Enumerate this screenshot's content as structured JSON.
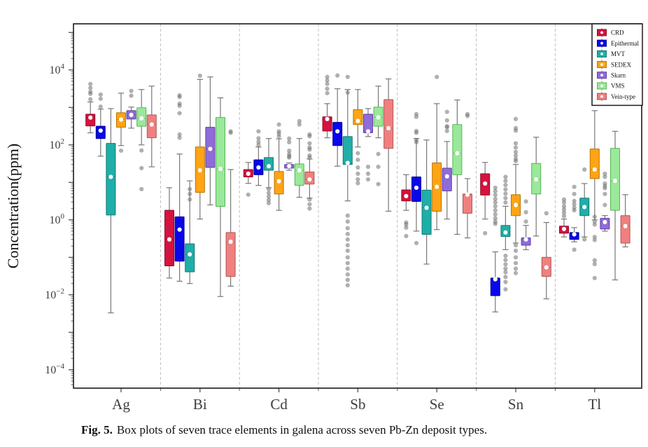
{
  "figure": {
    "caption_label": "Fig. 5.",
    "caption_text": "Box plots of seven trace elements in galena across seven Pb-Zn deposit types."
  },
  "chart_data": {
    "type": "boxplot",
    "yscale": "log",
    "ylabel": "Concentration(ppm)",
    "ylim_log": [
      -4.49,
      5.23
    ],
    "ytick_exponents": [
      4,
      2,
      0,
      -2,
      -4
    ],
    "categories": [
      "Ag",
      "Bi",
      "Cd",
      "Sb",
      "Se",
      "Sn",
      "Tl"
    ],
    "legend_position": "top-right",
    "grid": "dashed vertical separators between element groups",
    "colors": {
      "whisker": "#787878",
      "outlier": "#6f6f6f",
      "frame": "#1a1a1a",
      "separator": "#bdbdbd",
      "mean_dot": "#ffffff"
    },
    "series": [
      {
        "name": "CRD",
        "color": "#D6123F",
        "edge_color": "#8E0B29",
        "boxes": {
          "Ag": {
            "whislo": 210,
            "q1": 320,
            "med": 535,
            "q3": 660,
            "whishi": 1400,
            "outliers": [
              4200,
              3300,
              2600,
              2300,
              1650
            ]
          },
          "Bi": {
            "whislo": 0.028,
            "q1": 0.059,
            "med": 0.3,
            "q3": 1.8,
            "whishi": 7.2,
            "outliers": []
          },
          "Cd": {
            "whislo": 9.4,
            "q1": 14,
            "med": 17,
            "q3": 22,
            "whishi": 34,
            "outliers": [
              4.7
            ]
          },
          "Sb": {
            "whislo": 155,
            "q1": 235,
            "med": 490,
            "q3": 560,
            "whishi": 1260,
            "outliers": [
              6500,
              5250,
              4250,
              3150,
              2400
            ]
          },
          "Se": {
            "whislo": 1.8,
            "q1": 3.2,
            "med": 4.3,
            "q3": 6.3,
            "whishi": 16,
            "outliers": [
              0.85,
              0.75,
              0.62,
              0.37
            ]
          },
          "Sn": {
            "whislo": 1.05,
            "q1": 4.6,
            "med": 9.3,
            "q3": 17,
            "whishi": 34,
            "outliers": [
              0.44
            ]
          },
          "Tl": {
            "whislo": 0.35,
            "q1": 0.44,
            "med": 0.57,
            "q3": 0.68,
            "whishi": 1.05,
            "outliers": [
              3.5,
              2.9,
              2.3,
              1.9,
              1.55,
              1.25
            ]
          }
        }
      },
      {
        "name": "Epithermal",
        "color": "#0808E8",
        "edge_color": "#0000A0",
        "boxes": {
          "Ag": {
            "whislo": 50,
            "q1": 148,
            "med": 240,
            "q3": 316,
            "whishi": 900,
            "outliers": [
              2200,
              1700,
              1050
            ]
          },
          "Bi": {
            "whislo": 0.023,
            "q1": 0.079,
            "med": 0.55,
            "q3": 1.2,
            "whishi": 57,
            "outliers": [
              2100,
              1900,
              1260,
              1100,
              700,
              190,
              155
            ]
          },
          "Cd": {
            "whislo": 8.3,
            "q1": 16,
            "med": 25,
            "q3": 40,
            "whishi": 88,
            "outliers": [
              230,
              150,
              120,
              100
            ]
          },
          "Sb": {
            "whislo": 27,
            "q1": 96,
            "med": 230,
            "q3": 400,
            "whishi": 3150,
            "outliers": [
              7100
            ]
          },
          "Se": {
            "whislo": 0.5,
            "q1": 3.1,
            "med": 7.2,
            "q3": 14,
            "whishi": 148,
            "outliers": [
              660,
              560,
              235,
              210,
              135,
              118,
              0.24
            ]
          },
          "Sn": {
            "whislo": 0.0035,
            "q1": 0.0095,
            "med": 0.026,
            "q3": 0.028,
            "whishi": 0.14,
            "outliers": [
              7.2,
              5.8,
              4.6,
              3.6,
              2.9,
              2.3,
              1.8,
              1.4,
              1.1,
              0.9,
              0.78
            ]
          },
          "Tl": {
            "whislo": 0.26,
            "q1": 0.3,
            "med": 0.41,
            "q3": 0.46,
            "whishi": 0.62,
            "outliers": [
              7.6,
              4.9,
              3.2,
              2.6,
              2.1,
              1.8,
              0.16
            ]
          }
        }
      },
      {
        "name": "MVT",
        "color": "#1FAEA8",
        "edge_color": "#127A75",
        "boxes": {
          "Ag": {
            "whislo": 0.0033,
            "q1": 1.35,
            "med": 14,
            "q3": 110,
            "whishi": 930,
            "outliers": []
          },
          "Bi": {
            "whislo": 0.02,
            "q1": 0.041,
            "med": 0.12,
            "q3": 0.23,
            "whishi": 11,
            "outliers": [
              6.6,
              4.9,
              3.5
            ]
          },
          "Cd": {
            "whislo": 7.2,
            "q1": 21,
            "med": 27,
            "q3": 46,
            "whishi": 148,
            "outliers": [
              6.6,
              5.2,
              4.2,
              3.4,
              2.8
            ]
          },
          "Sb": {
            "whislo": 3.2,
            "q1": 30,
            "med": 33,
            "q3": 167,
            "whishi": 3000,
            "outliers": [
              6500,
              2500,
              1.3,
              0.9,
              0.6,
              0.42,
              0.3,
              0.21,
              0.15,
              0.1,
              0.07,
              0.05,
              0.035,
              0.025,
              0.018
            ]
          },
          "Se": {
            "whislo": 0.066,
            "q1": 0.41,
            "med": 2.1,
            "q3": 6.2,
            "whishi": 135,
            "outliers": []
          },
          "Sn": {
            "whislo": 0.16,
            "q1": 0.36,
            "med": 0.46,
            "q3": 0.71,
            "whishi": 2.3,
            "outliers": [
              14,
              11,
              8.5,
              6.5,
              5,
              3.8,
              2.9,
              0.11,
              0.085,
              0.065,
              0.05,
              0.04,
              0.03,
              0.022,
              0.014
            ]
          },
          "Tl": {
            "whislo": 0.35,
            "q1": 1.3,
            "med": 2.2,
            "q3": 3.8,
            "whishi": 9.3,
            "outliers": [
              22,
              0.3
            ]
          }
        }
      },
      {
        "name": "SEDEX",
        "color": "#FFA414",
        "edge_color": "#B87400",
        "boxes": {
          "Ag": {
            "whislo": 96,
            "q1": 295,
            "med": 475,
            "q3": 720,
            "whishi": 2400,
            "outliers": [
              70
            ]
          },
          "Bi": {
            "whislo": 1.05,
            "q1": 5.4,
            "med": 21,
            "q3": 88,
            "whishi": 5600,
            "outliers": [
              7000
            ]
          },
          "Cd": {
            "whislo": 1.8,
            "q1": 4.9,
            "med": 10.7,
            "q3": 19.5,
            "whishi": 145,
            "outliers": [
              350,
              230,
              200,
              170
            ]
          },
          "Sb": {
            "whislo": 88,
            "q1": 350,
            "med": 435,
            "q3": 870,
            "whishi": 3000,
            "outliers": [
              60,
              40,
              25,
              17,
              12,
              9.5
            ]
          },
          "Se": {
            "whislo": 0.55,
            "q1": 1.7,
            "med": 7.6,
            "q3": 33,
            "whishi": 1260,
            "outliers": [
              6500
            ]
          },
          "Sn": {
            "whislo": 0.24,
            "q1": 1.3,
            "med": 2.5,
            "q3": 4.7,
            "whishi": 30,
            "outliers": [
              490,
              280,
              240,
              110,
              85,
              65,
              52,
              42,
              37,
              0.21,
              0.15,
              0.1,
              0.07,
              0.05,
              0.038
            ]
          },
          "Tl": {
            "whislo": 1.0,
            "q1": 12.6,
            "med": 22,
            "q3": 78,
            "whishi": 820,
            "outliers": [
              1.2,
              0.9,
              0.75,
              0.35,
              0.29,
              0.083,
              0.066,
              0.028
            ]
          }
        }
      },
      {
        "name": "Skarn",
        "color": "#8F6CD9",
        "edge_color": "#5F3FA8",
        "boxes": {
          "Ag": {
            "whislo": 280,
            "q1": 490,
            "med": 630,
            "q3": 820,
            "whishi": 1020,
            "outliers": [
              2750,
              2050
            ]
          },
          "Bi": {
            "whislo": 2.5,
            "q1": 25,
            "med": 78,
            "q3": 295,
            "whishi": 6500,
            "outliers": []
          },
          "Cd": {
            "whislo": 21,
            "q1": 24,
            "med": 27,
            "q3": 30,
            "whishi": 33,
            "outliers": [
              148,
              118,
              70,
              57,
              50,
              46
            ]
          },
          "Sb": {
            "whislo": 167,
            "q1": 210,
            "med": 230,
            "q3": 660,
            "whishi": 930,
            "outliers": [
              26,
              17,
              12
            ]
          },
          "Se": {
            "whislo": 1.05,
            "q1": 5.9,
            "med": 14.5,
            "q3": 24,
            "whishi": 123,
            "outliers": [
              760,
              450,
              316,
              295,
              235
            ]
          },
          "Sn": {
            "whislo": 0.16,
            "q1": 0.21,
            "med": 0.3,
            "q3": 0.33,
            "whishi": 0.71,
            "outliers": [
              3.1,
              1.6,
              0.9
            ]
          },
          "Tl": {
            "whislo": 0.5,
            "q1": 0.57,
            "med": 0.87,
            "q3": 1.1,
            "whishi": 1.3,
            "outliers": [
              17,
              14,
              9.3,
              8,
              7,
              4.9,
              2.5
            ]
          }
        }
      },
      {
        "name": "VMS",
        "color": "#9AE89A",
        "edge_color": "#57B557",
        "boxes": {
          "Ag": {
            "whislo": 100,
            "q1": 316,
            "med": 510,
            "q3": 980,
            "whishi": 3000,
            "outliers": [
              71,
              24,
              6.6
            ]
          },
          "Bi": {
            "whislo": 0.009,
            "q1": 2.3,
            "med": 23,
            "q3": 540,
            "whishi": 1800,
            "outliers": []
          },
          "Cd": {
            "whislo": 4.0,
            "q1": 8.3,
            "med": 21,
            "q3": 31,
            "whishi": 148,
            "outliers": [
              430,
              350
            ]
          },
          "Sb": {
            "whislo": 155,
            "q1": 316,
            "med": 540,
            "q3": 1020,
            "whishi": 3700,
            "outliers": [
              57,
              26,
              9
            ]
          },
          "Se": {
            "whislo": 0.41,
            "q1": 16,
            "med": 60,
            "q3": 350,
            "whishi": 1580,
            "outliers": []
          },
          "Sn": {
            "whislo": 0.37,
            "q1": 4.9,
            "med": 12,
            "q3": 32,
            "whishi": 160,
            "outliers": []
          },
          "Tl": {
            "whislo": 0.025,
            "q1": 1.8,
            "med": 11,
            "q3": 81,
            "whishi": 230,
            "outliers": []
          }
        }
      },
      {
        "name": "Vein-type",
        "color": "#F08080",
        "edge_color": "#B05555",
        "boxes": {
          "Ag": {
            "whislo": 26,
            "q1": 155,
            "med": 350,
            "q3": 630,
            "whishi": 3700,
            "outliers": []
          },
          "Bi": {
            "whislo": 0.017,
            "q1": 0.031,
            "med": 0.26,
            "q3": 0.46,
            "whishi": 22,
            "outliers": [
              230,
              210
            ]
          },
          "Cd": {
            "whislo": 3.8,
            "q1": 9,
            "med": 12,
            "q3": 19,
            "whishi": 42,
            "outliers": [
              190,
              170,
              110,
              85,
              75,
              52,
              46,
              3.5,
              2.6,
              2.0
            ]
          },
          "Sb": {
            "whislo": 1.7,
            "q1": 81,
            "med": 280,
            "q3": 1620,
            "whishi": 5750,
            "outliers": []
          },
          "Se": {
            "whislo": 0.33,
            "q1": 1.5,
            "med": 4.7,
            "q3": 4.9,
            "whishi": 12.6,
            "outliers": [
              660,
              590
            ]
          },
          "Sn": {
            "whislo": 0.0078,
            "q1": 0.031,
            "med": 0.054,
            "q3": 0.1,
            "whishi": 0.85,
            "outliers": [
              1.5
            ]
          },
          "Tl": {
            "whislo": 0.19,
            "q1": 0.24,
            "med": 0.68,
            "q3": 1.3,
            "whishi": 4.7,
            "outliers": []
          }
        }
      }
    ]
  }
}
